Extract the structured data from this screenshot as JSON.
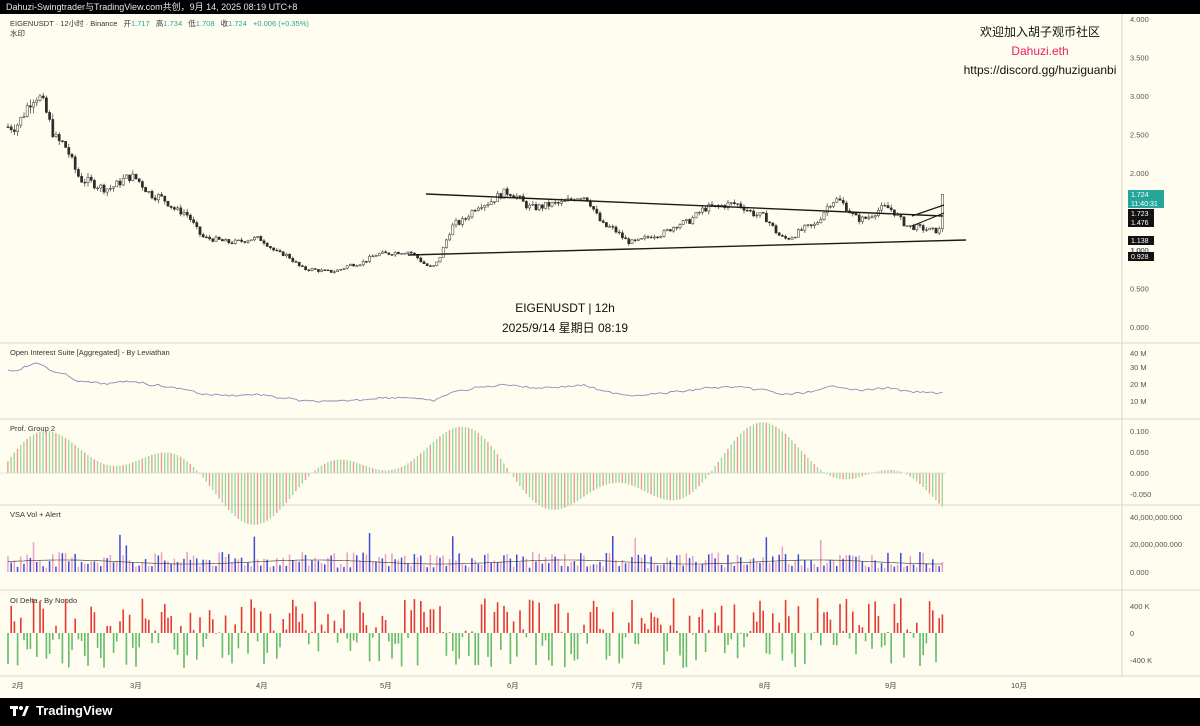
{
  "header": {
    "caption": "Dahuzi-Swingtrader与TradingView.com共创，9月 14, 2025 08:19 UTC+8"
  },
  "legend": {
    "symbol_line": "EIGENUSDT · 12小时 · Binance",
    "ohlc": [
      {
        "label": "开",
        "value": "1.717"
      },
      {
        "label": "高",
        "value": "1.734"
      },
      {
        "label": "低",
        "value": "1.708"
      },
      {
        "label": "收",
        "value": "1.724"
      }
    ],
    "change": "+0.006 (+0.35%)",
    "sub": "水印"
  },
  "watermark": {
    "line1": "欢迎加入胡子观币社区",
    "line2": "Dahuzi.eth",
    "line3": "https://discord.gg/huziguanbi"
  },
  "center_label": {
    "line1": "EIGENUSDT | 12h",
    "line2": "2025/9/14 星期日 08:19"
  },
  "panes": {
    "oi_title": "Open Interest Suite [Aggregated] - By Leviathan",
    "prof_title": "Prof. Group 2",
    "vsa_title": "VSA Vol + Alert",
    "delta_title": "OI Delta - By Noodo"
  },
  "price_badges": {
    "last": "1.724",
    "countdown": "11:40:31",
    "upper": "1.723",
    "line_a": "1.476",
    "lower": "1.138",
    "lower2": "0.928",
    "partial": "1.000"
  },
  "colors": {
    "up": "#26a69a",
    "down": "#ef5350",
    "background": "#fffdef",
    "trendline": "#1a1a1a",
    "watermark_pink": "#e91e63",
    "oi_line": "#8a8ac0",
    "vsa_blue": "#3d4bd6",
    "vsa_pink": "#e8a0c8"
  },
  "brand": {
    "name": "TradingView"
  },
  "chart_data": {
    "type": "candlestick",
    "symbol": "EIGENUSDT",
    "interval": "12h",
    "exchange": "Binance",
    "y_axis": {
      "ticks": [
        "4.000",
        "3.500",
        "3.000",
        "2.500",
        "2.000",
        "1.500",
        "1.000",
        "0.500",
        "0.000"
      ],
      "range": [
        0,
        4
      ]
    },
    "x_axis": {
      "ticks": [
        "2月",
        "3月",
        "4月",
        "5月",
        "6月",
        "7月",
        "8月",
        "9月",
        "10月"
      ]
    },
    "price_path": [
      [
        "2月",
        2.6
      ],
      [
        "2月",
        3.0
      ],
      [
        "2月",
        2.4
      ],
      [
        "2月",
        1.9
      ],
      [
        "2月",
        1.8
      ],
      [
        "3月",
        1.95
      ],
      [
        "3月",
        1.7
      ],
      [
        "3月",
        1.5
      ],
      [
        "3月",
        1.15
      ],
      [
        "3月",
        1.1
      ],
      [
        "4月",
        1.15
      ],
      [
        "4月",
        0.95
      ],
      [
        "4月",
        0.75
      ],
      [
        "4月",
        0.72
      ],
      [
        "4月",
        0.82
      ],
      [
        "5月",
        0.95
      ],
      [
        "5月",
        0.98
      ],
      [
        "5月",
        0.78
      ],
      [
        "5月",
        1.35
      ],
      [
        "5月",
        1.6
      ],
      [
        "6月",
        1.75
      ],
      [
        "6月",
        1.55
      ],
      [
        "6月",
        1.6
      ],
      [
        "6月",
        1.7
      ],
      [
        "6月",
        1.3
      ],
      [
        "7月",
        1.1
      ],
      [
        "7月",
        1.2
      ],
      [
        "7月",
        1.35
      ],
      [
        "7月",
        1.55
      ],
      [
        "7月",
        1.6
      ],
      [
        "8月",
        1.45
      ],
      [
        "8月",
        1.15
      ],
      [
        "8月",
        1.3
      ],
      [
        "8月",
        1.65
      ],
      [
        "8月",
        1.4
      ],
      [
        "9月",
        1.55
      ],
      [
        "9月",
        1.3
      ],
      [
        "9月",
        1.25
      ],
      [
        "9月",
        1.45
      ],
      [
        "9月",
        1.724
      ]
    ],
    "trendlines": [
      {
        "name": "upper",
        "from": [
          "5月",
          1.7
        ],
        "to": [
          "9月",
          1.48
        ]
      },
      {
        "name": "lower",
        "from": [
          "5月",
          0.95
        ],
        "to": [
          "10月",
          1.14
        ]
      }
    ],
    "indicators": {
      "open_interest": {
        "ticks": [
          "40 M",
          "30 M",
          "20 M",
          "10 M"
        ]
      },
      "prof_group_2": {
        "ticks": [
          "0.100",
          "0.050",
          "0.000",
          "-0.050"
        ]
      },
      "vsa_volume": {
        "ticks": [
          "40,000,000.000",
          "20,000,000.000",
          "0.000"
        ]
      },
      "oi_delta": {
        "ticks": [
          "400 K",
          "0",
          "-400 K"
        ]
      }
    }
  }
}
